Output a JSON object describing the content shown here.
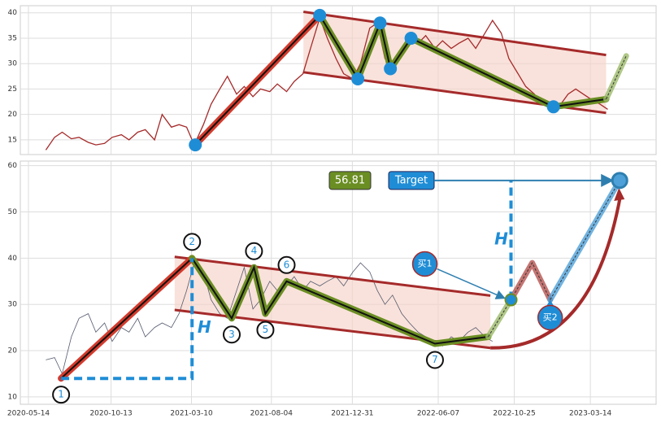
{
  "chart_data": [
    {
      "type": "line",
      "color": "#a52a2a",
      "grid": true,
      "show_xtick_labels": false,
      "xlim": [
        "2020-04-29",
        "2023-07-13"
      ],
      "ylim": [
        12.1,
        41.4
      ],
      "yticks": [
        15,
        20,
        25,
        30,
        35,
        40
      ],
      "xticks": [
        "2020-05-14",
        "2020-10-13",
        "2021-03-10",
        "2021-08-04",
        "2021-12-31",
        "2022-06-07",
        "2022-10-25",
        "2023-03-14"
      ],
      "x": [
        "2020-06-15",
        "2020-07-01",
        "2020-07-15",
        "2020-08-01",
        "2020-08-15",
        "2020-09-01",
        "2020-09-15",
        "2020-10-01",
        "2020-10-15",
        "2020-11-01",
        "2020-11-15",
        "2020-12-01",
        "2020-12-15",
        "2021-01-01",
        "2021-01-15",
        "2021-02-01",
        "2021-02-15",
        "2021-03-01",
        "2021-03-15",
        "2021-04-01",
        "2021-04-15",
        "2021-05-01",
        "2021-05-15",
        "2021-06-01",
        "2021-06-15",
        "2021-07-01",
        "2021-07-15",
        "2021-08-01",
        "2021-08-15",
        "2021-09-01",
        "2021-09-15",
        "2021-10-01",
        "2021-10-15",
        "2021-11-01",
        "2021-11-15",
        "2021-12-01",
        "2021-12-15",
        "2022-01-01",
        "2022-01-15",
        "2022-02-01",
        "2022-02-15",
        "2022-03-01",
        "2022-03-15",
        "2022-04-01",
        "2022-04-15",
        "2022-05-01",
        "2022-05-15",
        "2022-06-01",
        "2022-06-15",
        "2022-07-01",
        "2022-07-15",
        "2022-08-01",
        "2022-08-15",
        "2022-09-01",
        "2022-09-15",
        "2022-10-01",
        "2022-10-15",
        "2022-11-01",
        "2022-11-15",
        "2022-12-01",
        "2022-12-15",
        "2023-01-01",
        "2023-01-15",
        "2023-02-01",
        "2023-02-15",
        "2023-03-01",
        "2023-03-15",
        "2023-04-01",
        "2023-04-15"
      ],
      "values": [
        13.0,
        15.5,
        16.5,
        15.2,
        15.5,
        14.5,
        14.0,
        14.3,
        15.5,
        16.0,
        15.0,
        16.5,
        17.0,
        15.0,
        20.0,
        17.5,
        18.0,
        17.5,
        14.0,
        18.0,
        22.0,
        25.0,
        27.5,
        24.0,
        25.5,
        23.5,
        25.0,
        24.5,
        26.0,
        24.5,
        26.5,
        28.0,
        33.0,
        39.0,
        35.0,
        31.0,
        28.0,
        27.0,
        30.0,
        37.0,
        38.0,
        31.0,
        29.0,
        33.0,
        35.0,
        34.0,
        35.5,
        33.0,
        34.5,
        33.0,
        34.0,
        35.0,
        33.0,
        36.0,
        38.5,
        36.0,
        31.0,
        28.0,
        25.5,
        24.0,
        22.0,
        22.5,
        21.5,
        24.0,
        25.0,
        24.0,
        23.0,
        22.0,
        21.0
      ],
      "channel": {
        "upper": {
          "x": [
            "2021-10-02",
            "2023-04-12"
          ],
          "values": [
            40.2,
            31.7
          ]
        },
        "lower": {
          "x": [
            "2021-10-02",
            "2023-04-12"
          ],
          "values": [
            28.3,
            20.3
          ]
        }
      },
      "impulse": {
        "x": [
          "2021-03-17",
          "2021-11-01"
        ],
        "values": [
          14,
          39.5
        ],
        "color": "#d33a2c"
      },
      "zigzag": {
        "x": [
          "2021-11-01",
          "2022-01-10",
          "2022-02-20",
          "2022-03-11",
          "2022-04-18",
          "2023-01-05",
          "2023-04-12"
        ],
        "values": [
          39.5,
          27,
          38,
          29,
          35,
          21.5,
          23
        ],
        "color": "#6b8e23"
      },
      "projection": [
        {
          "x": [
            "2023-04-12",
            "2023-05-19"
          ],
          "values": [
            23,
            31.5
          ],
          "color": "#9cba6a"
        }
      ],
      "pivots": {
        "x": [
          "2021-03-17",
          "2021-11-01",
          "2022-01-10",
          "2022-02-20",
          "2022-03-11",
          "2022-04-18",
          "2023-01-05"
        ],
        "values": [
          14,
          39.5,
          27,
          38,
          29,
          35,
          21.5
        ],
        "color": "#1f8dd6"
      }
    },
    {
      "type": "line",
      "color": "#555a6e",
      "grid": true,
      "show_xtick_labels": true,
      "xlim": [
        "2020-04-29",
        "2023-07-13"
      ],
      "ylim": [
        8.4,
        61
      ],
      "yticks": [
        10,
        20,
        30,
        40,
        50,
        60
      ],
      "xticks": [
        "2020-05-14",
        "2020-10-13",
        "2021-03-10",
        "2021-08-04",
        "2021-12-31",
        "2022-06-07",
        "2022-10-25",
        "2023-03-14"
      ],
      "x": [
        "2020-06-15",
        "2020-07-01",
        "2020-07-15",
        "2020-08-01",
        "2020-08-15",
        "2020-09-01",
        "2020-09-15",
        "2020-10-01",
        "2020-10-15",
        "2020-11-01",
        "2020-11-15",
        "2020-12-01",
        "2020-12-15",
        "2021-01-01",
        "2021-01-15",
        "2021-02-01",
        "2021-02-15",
        "2021-03-01",
        "2021-03-15",
        "2021-04-01",
        "2021-04-15",
        "2021-05-01",
        "2021-05-15",
        "2021-06-01",
        "2021-06-15",
        "2021-07-01",
        "2021-07-15",
        "2021-08-01",
        "2021-08-15",
        "2021-09-01",
        "2021-09-15",
        "2021-10-01",
        "2021-10-15",
        "2021-11-01",
        "2021-11-15",
        "2021-12-01",
        "2021-12-15",
        "2022-01-01",
        "2022-01-15",
        "2022-02-01",
        "2022-02-15",
        "2022-03-01",
        "2022-03-15",
        "2022-04-01",
        "2022-04-15",
        "2022-05-01",
        "2022-05-15",
        "2022-06-01",
        "2022-06-15",
        "2022-07-01",
        "2022-07-15",
        "2022-08-01",
        "2022-08-15",
        "2022-09-01",
        "2022-09-15"
      ],
      "values": [
        18,
        18.5,
        15,
        23,
        27,
        28,
        24,
        26,
        22,
        25,
        24,
        27,
        23,
        25,
        26,
        25,
        28,
        33,
        39,
        37,
        31,
        28,
        27,
        33,
        38,
        29,
        31,
        35,
        33,
        34,
        36,
        33,
        35,
        34,
        35,
        36,
        34,
        37,
        39,
        37,
        33,
        30,
        32,
        28,
        26,
        24,
        23,
        22,
        21,
        23,
        22,
        24,
        25,
        23,
        22
      ],
      "channel": {
        "upper": {
          "x": [
            "2021-02-07",
            "2022-09-11"
          ],
          "values": [
            40.3,
            31.9
          ]
        },
        "lower": {
          "x": [
            "2021-02-07",
            "2022-09-11"
          ],
          "values": [
            28.8,
            20.6
          ]
        }
      },
      "impulse": {
        "x": [
          "2020-07-13",
          "2021-03-11"
        ],
        "values": [
          14,
          40
        ],
        "color": "#d33a2c"
      },
      "zigzag": {
        "x": [
          "2021-03-11",
          "2021-05-23",
          "2021-07-03",
          "2021-07-24",
          "2021-09-01",
          "2022-06-01",
          "2022-09-07"
        ],
        "values": [
          40,
          27,
          38,
          28,
          35,
          21.5,
          23
        ],
        "color": "#6b8e23"
      },
      "projection": [
        {
          "x": [
            "2022-09-07",
            "2022-10-19"
          ],
          "values": [
            23,
            31
          ],
          "color": "#9cba6a"
        },
        {
          "x": [
            "2022-10-19",
            "2022-11-27",
            "2022-12-30"
          ],
          "values": [
            31,
            39,
            31
          ],
          "color": "#b5524f"
        },
        {
          "x": [
            "2022-12-30",
            "2023-05-07"
          ],
          "values": [
            31,
            56.81
          ],
          "color": "#4ea0d8"
        }
      ],
      "pivots": {
        "x": [
          "2020-07-13",
          "2021-03-11",
          "2021-05-23",
          "2021-07-03",
          "2021-07-24",
          "2021-09-01",
          "2022-06-01"
        ],
        "values": [
          14,
          40,
          27,
          38,
          28,
          35,
          21.5
        ],
        "labels": [
          "1",
          "2",
          "3",
          "4",
          "5",
          "6",
          "7"
        ],
        "color": "#1f8dd6"
      },
      "measures": [
        {
          "label": "H",
          "x": [
            "2020-07-13",
            "2021-03-11",
            "2021-03-11"
          ],
          "values": [
            14,
            14,
            40
          ]
        },
        {
          "label": "H",
          "x": [
            "2022-10-19",
            "2022-10-19"
          ],
          "values": [
            31,
            56.81
          ]
        }
      ],
      "curve": {
        "x": [
          "2022-09-11",
          "2023-05-07"
        ],
        "values": [
          20.6,
          54.5
        ]
      },
      "target": {
        "label": "Target",
        "x": "2023-05-07",
        "value": 56.81
      },
      "buys": [
        {
          "label": "买1",
          "x": "2022-10-19",
          "value": 31
        },
        {
          "label": "买2",
          "x": "2022-12-30",
          "value": 31
        }
      ]
    }
  ]
}
